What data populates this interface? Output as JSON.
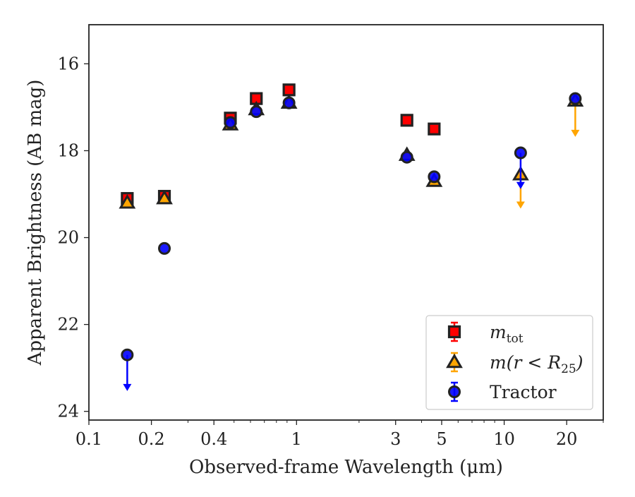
{
  "chart_data": {
    "type": "scatter",
    "title": "",
    "xlabel": "Observed-frame Wavelength (μm)",
    "ylabel": "Apparent Brightness (AB mag)",
    "x_scale": "log",
    "xlim": [
      0.1,
      30
    ],
    "ylim": [
      24.2,
      15.1
    ],
    "y_inverted": true,
    "grid": false,
    "x_ticks": [
      {
        "value": 0.1,
        "label": "0.1"
      },
      {
        "value": 0.2,
        "label": "0.2"
      },
      {
        "value": 0.4,
        "label": "0.4"
      },
      {
        "value": 1,
        "label": "1"
      },
      {
        "value": 3,
        "label": "3"
      },
      {
        "value": 5,
        "label": "5"
      },
      {
        "value": 10,
        "label": "10"
      },
      {
        "value": 20,
        "label": "20"
      }
    ],
    "y_ticks": [
      {
        "value": 16,
        "label": "16"
      },
      {
        "value": 18,
        "label": "18"
      },
      {
        "value": 20,
        "label": "20"
      },
      {
        "value": 22,
        "label": "22"
      },
      {
        "value": 24,
        "label": "24"
      }
    ],
    "legend": {
      "position": "bottom-right"
    },
    "series": [
      {
        "name": "m_tot",
        "legend_label": {
          "base": "m",
          "sub": "tot"
        },
        "marker": "square",
        "fill": "#ff0000",
        "edge": "#222222",
        "points": [
          {
            "x": 0.153,
            "y": 19.1
          },
          {
            "x": 0.231,
            "y": 19.05
          },
          {
            "x": 0.48,
            "y": 17.25
          },
          {
            "x": 0.64,
            "y": 16.8
          },
          {
            "x": 0.92,
            "y": 16.6
          },
          {
            "x": 3.4,
            "y": 17.3
          },
          {
            "x": 4.6,
            "y": 17.5
          }
        ]
      },
      {
        "name": "m(r < R_25)",
        "legend_label": {
          "base": "m(r < R",
          "sub": "25",
          "tail": ")"
        },
        "marker": "triangle",
        "fill": "#ffa500",
        "edge": "#222222",
        "points": [
          {
            "x": 0.153,
            "y": 19.2
          },
          {
            "x": 0.231,
            "y": 19.1
          },
          {
            "x": 0.48,
            "y": 17.4
          },
          {
            "x": 0.64,
            "y": 17.05
          },
          {
            "x": 0.92,
            "y": 16.9
          },
          {
            "x": 3.4,
            "y": 18.1
          },
          {
            "x": 4.6,
            "y": 18.7
          },
          {
            "x": 12.0,
            "y": 18.55,
            "upper_limit": true,
            "limit_to": 19.3
          },
          {
            "x": 22.0,
            "y": 16.85,
            "upper_limit": true,
            "limit_to": 17.65
          }
        ]
      },
      {
        "name": "Tractor",
        "legend_label": {
          "base": "Tractor"
        },
        "marker": "circle",
        "fill": "#0000ff",
        "edge": "#222222",
        "points": [
          {
            "x": 0.153,
            "y": 22.7,
            "upper_limit": true,
            "limit_to": 23.5
          },
          {
            "x": 0.231,
            "y": 20.25
          },
          {
            "x": 0.48,
            "y": 17.35
          },
          {
            "x": 0.64,
            "y": 17.1
          },
          {
            "x": 0.92,
            "y": 16.9
          },
          {
            "x": 3.4,
            "y": 18.15
          },
          {
            "x": 4.6,
            "y": 18.6
          },
          {
            "x": 12.0,
            "y": 18.05,
            "upper_limit": true,
            "limit_to": 18.85
          },
          {
            "x": 22.0,
            "y": 16.8
          }
        ]
      }
    ]
  }
}
